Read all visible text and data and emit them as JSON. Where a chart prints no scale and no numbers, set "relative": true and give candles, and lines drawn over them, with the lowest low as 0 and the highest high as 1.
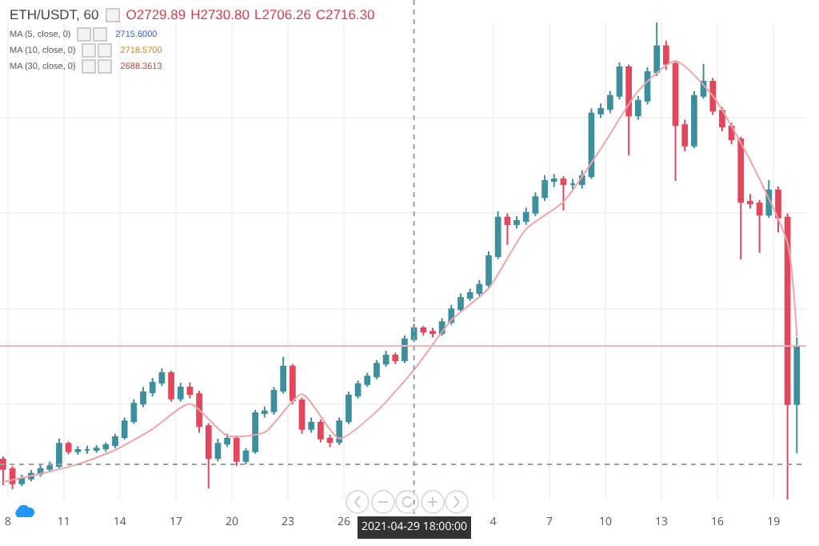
{
  "chart_data": {
    "type": "candlestick",
    "relative": true,
    "grid": true,
    "colors": [
      "#e2475d",
      "#e2475d",
      "#3d8f9c",
      "#3d8f9c",
      "#3d8f9c",
      "#3d8f9c",
      "#3d8f9c",
      "#e2475d",
      "#3d8f9c",
      "#3d8f9c",
      "#3d8f9c",
      "#3d8f9c",
      "#3d8f9c",
      "#3d8f9c",
      "#3d8f9c",
      "#3d8f9c",
      "#3d8f9c",
      "#3d8f9c",
      "#e2475d",
      "#3d8f9c",
      "#e2475d",
      "#e2475d",
      "#e2475d",
      "#3d8f9c",
      "#3d8f9c",
      "#e2475d",
      "#3d8f9c",
      "#3d8f9c",
      "#3d8f9c",
      "#3d8f9c",
      "#3d8f9c",
      "#e2475d",
      "#e2475d",
      "#3d8f9c",
      "#e2475d",
      "#e2475d",
      "#3d8f9c",
      "#3d8f9c",
      "#3d8f9c",
      "#3d8f9c",
      "#3d8f9c",
      "#3d8f9c",
      "#e2475d",
      "#3d8f9c",
      "#3d8f9c",
      "#e2475d",
      "#e2475d",
      "#3d8f9c",
      "#3d8f9c",
      "#3d8f9c",
      "#3d8f9c",
      "#3d8f9c",
      "#3d8f9c",
      "#3d8f9c",
      "#e2475d",
      "#3d8f9c",
      "#3d8f9c",
      "#3d8f9c",
      "#3d8f9c",
      "#3d8f9c",
      "#e2475d",
      "#3d8f9c",
      "#3d8f9c",
      "#3d8f9c",
      "#3d8f9c",
      "#3d8f9c",
      "#3d8f9c",
      "#e2475d",
      "#3d8f9c",
      "#3d8f9c",
      "#3d8f9c",
      "#e2475d",
      "#e2475d",
      "#e2475d",
      "#3d8f9c",
      "#3d8f9c",
      "#e2475d",
      "#e2475d",
      "#e2475d",
      "#e2475d",
      "#e2475d",
      "#e2475d",
      "#3d8f9c",
      "#e2475d",
      "#e2475d",
      "#3d8f9c"
    ],
    "xlim": [
      "2021-04-07T14:00",
      "2021-05-20T18:00"
    ],
    "xticks": [
      {
        "value": "2021-04-08",
        "label": "8"
      },
      {
        "value": "2021-04-11",
        "label": "11"
      },
      {
        "value": "2021-04-14",
        "label": "14"
      },
      {
        "value": "2021-04-17",
        "label": "17"
      },
      {
        "value": "2021-04-20",
        "label": "20"
      },
      {
        "value": "2021-04-23",
        "label": "23"
      },
      {
        "value": "2021-04-26",
        "label": "26"
      },
      {
        "value": "2021-05-04",
        "label": "4"
      },
      {
        "value": "2021-05-07",
        "label": "7"
      },
      {
        "value": "2021-05-10",
        "label": "10"
      },
      {
        "value": "2021-05-13",
        "label": "13"
      },
      {
        "value": "2021-05-16",
        "label": "16"
      },
      {
        "value": "2021-05-19",
        "label": "19"
      }
    ],
    "x": [
      "2021-04-07T18:00",
      "2021-04-08T06:00",
      "2021-04-08T18:00",
      "2021-04-09T06:00",
      "2021-04-09T18:00",
      "2021-04-10T06:00",
      "2021-04-10T18:00",
      "2021-04-11T06:00",
      "2021-04-11T18:00",
      "2021-04-12T06:00",
      "2021-04-12T18:00",
      "2021-04-13T06:00",
      "2021-04-13T18:00",
      "2021-04-14T06:00",
      "2021-04-14T18:00",
      "2021-04-15T06:00",
      "2021-04-15T18:00",
      "2021-04-16T06:00",
      "2021-04-16T18:00",
      "2021-04-17T06:00",
      "2021-04-17T18:00",
      "2021-04-18T06:00",
      "2021-04-18T18:00",
      "2021-04-19T06:00",
      "2021-04-19T18:00",
      "2021-04-20T06:00",
      "2021-04-20T18:00",
      "2021-04-21T06:00",
      "2021-04-21T18:00",
      "2021-04-22T06:00",
      "2021-04-22T18:00",
      "2021-04-23T06:00",
      "2021-04-23T18:00",
      "2021-04-24T06:00",
      "2021-04-24T18:00",
      "2021-04-25T06:00",
      "2021-04-25T18:00",
      "2021-04-26T06:00",
      "2021-04-26T18:00",
      "2021-04-27T06:00",
      "2021-04-27T18:00",
      "2021-04-28T06:00",
      "2021-04-28T18:00",
      "2021-04-29T06:00",
      "2021-04-29T18:00",
      "2021-04-30T06:00",
      "2021-04-30T18:00",
      "2021-05-01T06:00",
      "2021-05-01T18:00",
      "2021-05-02T06:00",
      "2021-05-02T18:00",
      "2021-05-03T06:00",
      "2021-05-03T18:00",
      "2021-05-04T06:00",
      "2021-05-04T18:00",
      "2021-05-05T06:00",
      "2021-05-05T18:00",
      "2021-05-06T06:00",
      "2021-05-06T18:00",
      "2021-05-07T06:00",
      "2021-05-07T18:00",
      "2021-05-08T06:00",
      "2021-05-08T18:00",
      "2021-05-09T06:00",
      "2021-05-09T18:00",
      "2021-05-10T06:00",
      "2021-05-10T18:00",
      "2021-05-11T06:00",
      "2021-05-11T18:00",
      "2021-05-12T06:00",
      "2021-05-12T18:00",
      "2021-05-13T06:00",
      "2021-05-13T18:00",
      "2021-05-14T06:00",
      "2021-05-14T18:00",
      "2021-05-15T06:00",
      "2021-05-15T18:00",
      "2021-05-16T06:00",
      "2021-05-16T18:00",
      "2021-05-17T06:00",
      "2021-05-17T18:00",
      "2021-05-18T06:00",
      "2021-05-18T18:00",
      "2021-05-19T06:00",
      "2021-05-19T18:00",
      "2021-05-20T06:00"
    ],
    "ohlc": [
      [
        0.084,
        0.09,
        0.03,
        0.064
      ],
      [
        0.064,
        0.07,
        0.022,
        0.034
      ],
      [
        0.034,
        0.052,
        0.028,
        0.044
      ],
      [
        0.044,
        0.062,
        0.038,
        0.054
      ],
      [
        0.054,
        0.072,
        0.048,
        0.064
      ],
      [
        0.064,
        0.08,
        0.058,
        0.07
      ],
      [
        0.07,
        0.128,
        0.066,
        0.117
      ],
      [
        0.117,
        0.122,
        0.095,
        0.101
      ],
      [
        0.101,
        0.112,
        0.094,
        0.104
      ],
      [
        0.104,
        0.113,
        0.096,
        0.104
      ],
      [
        0.104,
        0.114,
        0.098,
        0.107
      ],
      [
        0.107,
        0.12,
        0.1,
        0.114
      ],
      [
        0.114,
        0.138,
        0.108,
        0.131
      ],
      [
        0.131,
        0.172,
        0.126,
        0.164
      ],
      [
        0.164,
        0.21,
        0.158,
        0.201
      ],
      [
        0.201,
        0.236,
        0.194,
        0.225
      ],
      [
        0.225,
        0.255,
        0.216,
        0.245
      ],
      [
        0.245,
        0.275,
        0.238,
        0.265
      ],
      [
        0.265,
        0.27,
        0.205,
        0.212
      ],
      [
        0.212,
        0.245,
        0.205,
        0.235
      ],
      [
        0.235,
        0.246,
        0.212,
        0.221
      ],
      [
        0.221,
        0.228,
        0.14,
        0.154
      ],
      [
        0.154,
        0.16,
        0.023,
        0.087
      ],
      [
        0.087,
        0.128,
        0.08,
        0.117
      ],
      [
        0.117,
        0.138,
        0.11,
        0.128
      ],
      [
        0.128,
        0.134,
        0.07,
        0.081
      ],
      [
        0.081,
        0.108,
        0.074,
        0.101
      ],
      [
        0.101,
        0.188,
        0.096,
        0.181
      ],
      [
        0.181,
        0.195,
        0.172,
        0.185
      ],
      [
        0.185,
        0.236,
        0.178,
        0.228
      ],
      [
        0.228,
        0.299,
        0.222,
        0.279
      ],
      [
        0.279,
        0.284,
        0.2,
        0.208
      ],
      [
        0.208,
        0.214,
        0.138,
        0.148
      ],
      [
        0.148,
        0.172,
        0.14,
        0.161
      ],
      [
        0.161,
        0.168,
        0.12,
        0.128
      ],
      [
        0.128,
        0.136,
        0.11,
        0.121
      ],
      [
        0.121,
        0.172,
        0.114,
        0.164
      ],
      [
        0.164,
        0.226,
        0.158,
        0.218
      ],
      [
        0.218,
        0.25,
        0.212,
        0.242
      ],
      [
        0.242,
        0.266,
        0.236,
        0.258
      ],
      [
        0.258,
        0.292,
        0.252,
        0.285
      ],
      [
        0.285,
        0.312,
        0.278,
        0.302
      ],
      [
        0.302,
        0.308,
        0.284,
        0.292
      ],
      [
        0.292,
        0.344,
        0.286,
        0.336
      ],
      [
        0.336,
        0.368,
        0.33,
        0.359
      ],
      [
        0.359,
        0.364,
        0.344,
        0.352
      ],
      [
        0.352,
        0.36,
        0.34,
        0.349
      ],
      [
        0.349,
        0.38,
        0.343,
        0.372
      ],
      [
        0.372,
        0.408,
        0.366,
        0.399
      ],
      [
        0.399,
        0.432,
        0.392,
        0.423
      ],
      [
        0.423,
        0.442,
        0.416,
        0.433
      ],
      [
        0.433,
        0.46,
        0.426,
        0.45
      ],
      [
        0.45,
        0.52,
        0.444,
        0.51
      ],
      [
        0.51,
        0.604,
        0.504,
        0.591
      ],
      [
        0.591,
        0.6,
        0.534,
        0.577
      ],
      [
        0.577,
        0.594,
        0.568,
        0.584
      ],
      [
        0.584,
        0.612,
        0.576,
        0.601
      ],
      [
        0.601,
        0.644,
        0.594,
        0.634
      ],
      [
        0.634,
        0.68,
        0.626,
        0.668
      ],
      [
        0.668,
        0.682,
        0.655,
        0.671
      ],
      [
        0.671,
        0.678,
        0.606,
        0.661
      ],
      [
        0.661,
        0.672,
        0.65,
        0.661
      ],
      [
        0.661,
        0.69,
        0.652,
        0.678
      ],
      [
        0.678,
        0.82,
        0.672,
        0.809
      ],
      [
        0.809,
        0.83,
        0.8,
        0.819
      ],
      [
        0.819,
        0.856,
        0.81,
        0.846
      ],
      [
        0.846,
        0.916,
        0.838,
        0.906
      ],
      [
        0.906,
        0.912,
        0.721,
        0.805
      ],
      [
        0.805,
        0.846,
        0.796,
        0.836
      ],
      [
        0.836,
        0.906,
        0.828,
        0.896
      ],
      [
        0.896,
        1,
        0.888,
        0.95
      ],
      [
        0.95,
        0.962,
        0.9,
        0.913
      ],
      [
        0.913,
        0.92,
        0.668,
        0.785
      ],
      [
        0.785,
        0.796,
        0.73,
        0.742
      ],
      [
        0.742,
        0.856,
        0.736,
        0.846
      ],
      [
        0.846,
        0.913,
        0.84,
        0.876
      ],
      [
        0.876,
        0.884,
        0.806,
        0.815
      ],
      [
        0.815,
        0.822,
        0.772,
        0.782
      ],
      [
        0.782,
        0.79,
        0.745,
        0.755
      ],
      [
        0.755,
        0.76,
        0.503,
        0.624
      ],
      [
        0.624,
        0.64,
        0.61,
        0.621
      ],
      [
        0.621,
        0.628,
        0.517,
        0.597
      ],
      [
        0.597,
        0.67,
        0.59,
        0.648
      ],
      [
        0.648,
        0.656,
        0.56,
        0.591
      ],
      [
        0.591,
        0.6,
        0,
        0.2
      ],
      [
        0.2,
        0.34,
        0.097,
        0.322
      ]
    ],
    "series": [
      {
        "type": "line",
        "color": "#f4a3a8",
        "x": [
          "2021-04-07T18:00",
          "2021-04-09T18:00",
          "2021-04-11T18:00",
          "2021-04-13T18:00",
          "2021-04-15T18:00",
          "2021-04-17T18:00",
          "2021-04-19T18:00",
          "2021-04-21T18:00",
          "2021-04-23T18:00",
          "2021-04-25T18:00",
          "2021-04-27T18:00",
          "2021-04-29T18:00",
          "2021-05-01T18:00",
          "2021-05-03T18:00",
          "2021-05-05T18:00",
          "2021-05-07T18:00",
          "2021-05-09T18:00",
          "2021-05-11T18:00",
          "2021-05-13T18:00",
          "2021-05-15T18:00",
          "2021-05-17T18:00",
          "2021-05-19T18:00",
          "2021-05-20T06:00"
        ],
        "values": [
          0.037,
          0.054,
          0.074,
          0.104,
          0.148,
          0.201,
          0.134,
          0.141,
          0.221,
          0.128,
          0.185,
          0.272,
          0.376,
          0.443,
          0.567,
          0.624,
          0.735,
          0.856,
          0.919,
          0.846,
          0.711,
          0.537,
          0.342
        ]
      }
    ],
    "ref_lines": [
      {
        "axis": "y",
        "value": 0.322,
        "color": "#f6b3b9",
        "line_style": "solid"
      },
      {
        "axis": "y",
        "value": 0.074,
        "color": "#9aa0a6",
        "line_style": "dotted"
      },
      {
        "axis": "x",
        "value": "2021-04-29T18:00",
        "label": "2021-04-29 18:00:00",
        "color": "#9aa0a6",
        "line_style": "dotted"
      }
    ],
    "annotations": [
      "ETH/USDT, 60",
      "O2729.89",
      "H2730.80",
      "L2706.26",
      "C2716.30",
      "MA (5, close, 0)",
      "2715.6000",
      "MA (10, close, 0)",
      "2718.5700",
      "MA (30, close, 0)",
      "2688.3613"
    ]
  }
}
